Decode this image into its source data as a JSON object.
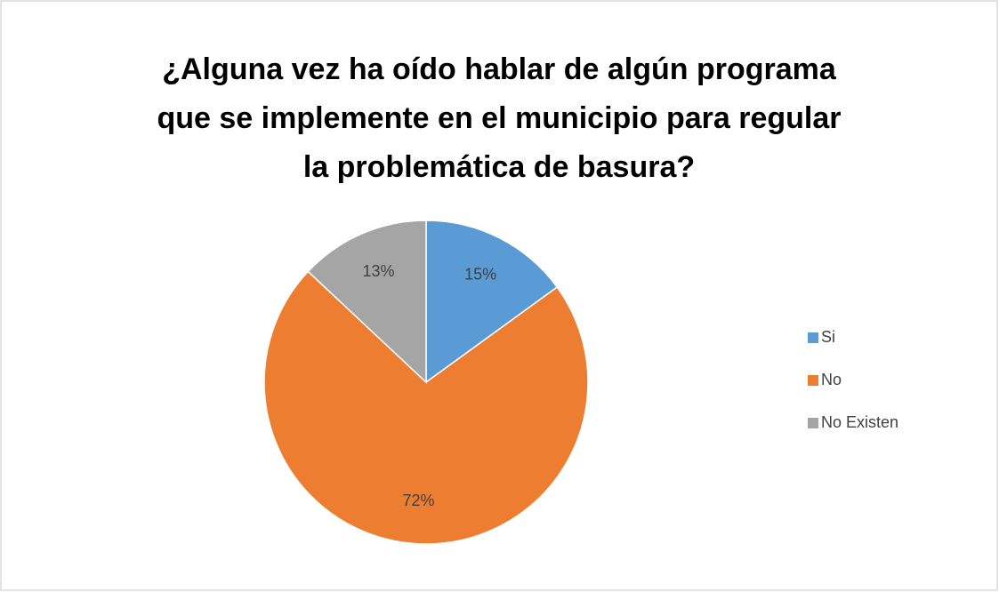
{
  "chart_data": {
    "type": "pie",
    "title": [
      "¿Alguna vez ha oído hablar de algún programa",
      "que se implemente en el municipio para regular",
      "la problemática de basura?"
    ],
    "categories": [
      "Si",
      "No",
      "No Existen"
    ],
    "values": [
      15,
      72,
      13
    ],
    "value_labels": [
      "15%",
      "72%",
      "13%"
    ],
    "colors": [
      "#5b9bd5",
      "#ed7d31",
      "#a5a5a5"
    ],
    "legend": "right"
  }
}
